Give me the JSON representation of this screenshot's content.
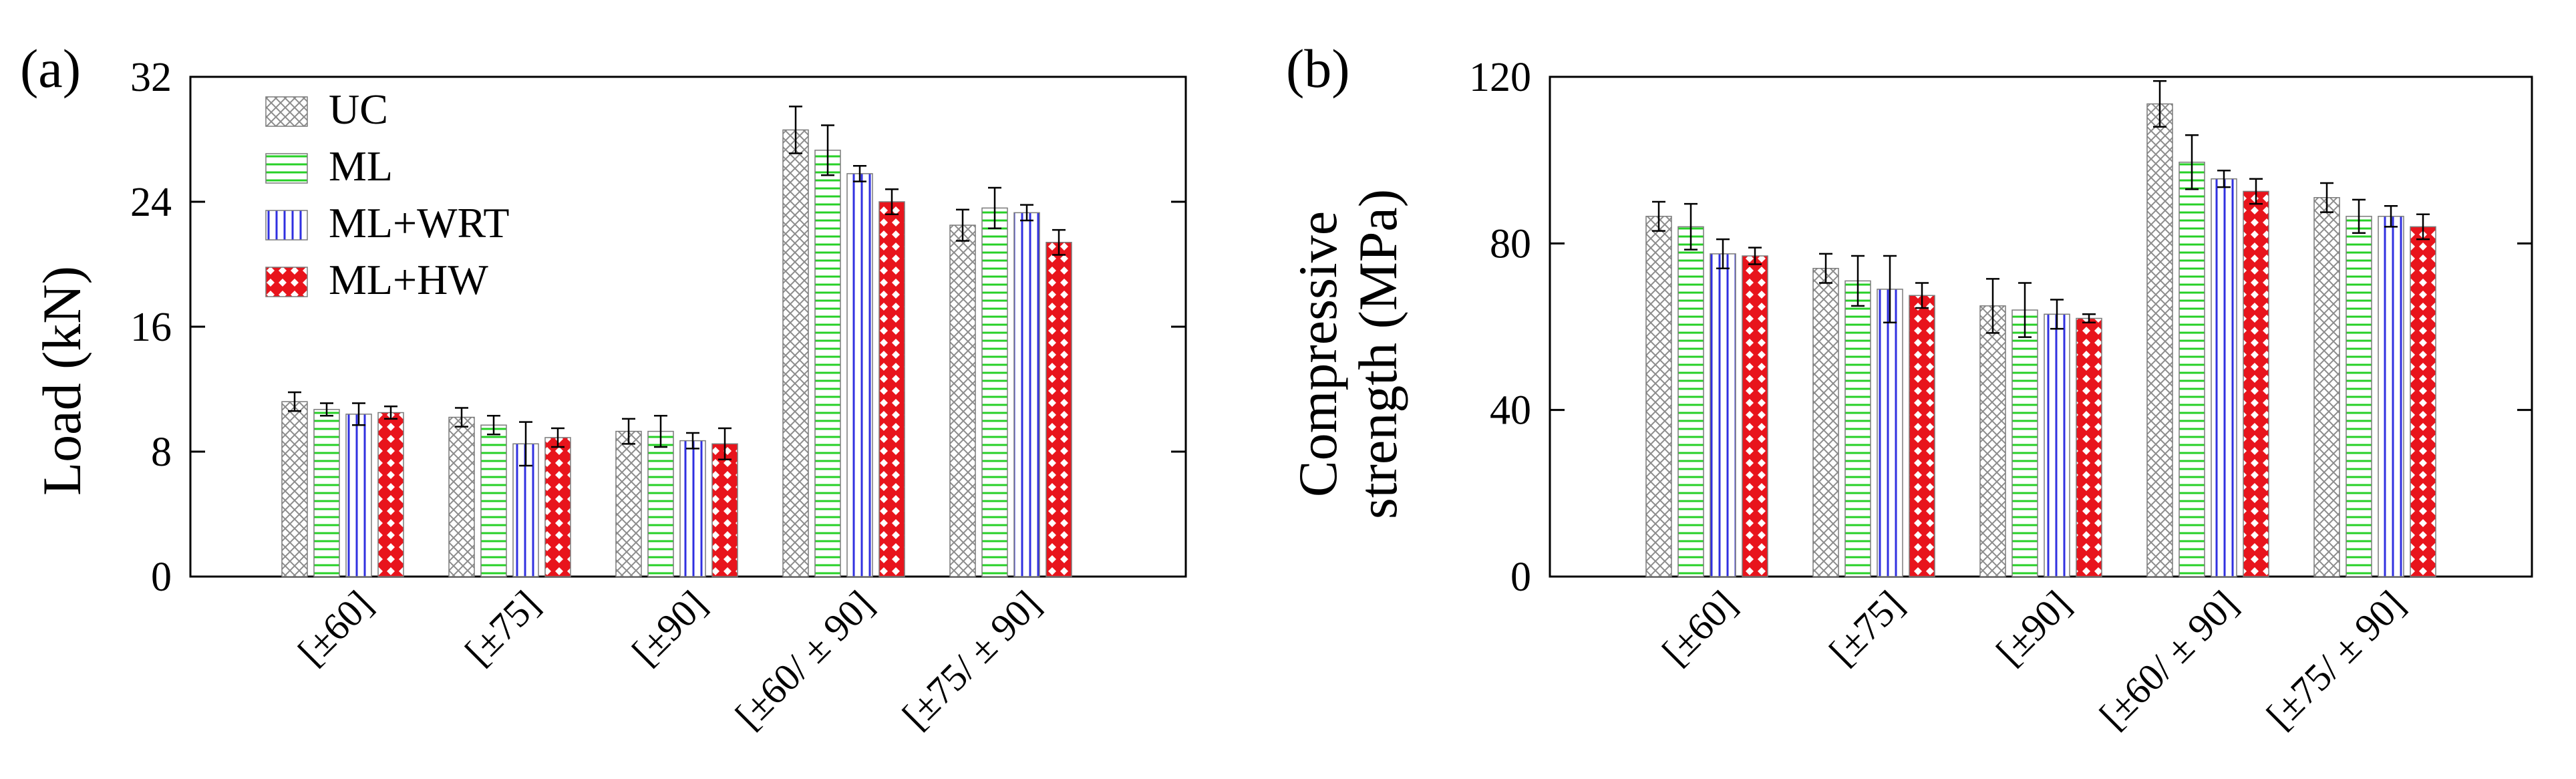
{
  "figure": {
    "panels": [
      {
        "panel_label": "(a)",
        "ylabel_lines": [
          "Load (kN)"
        ]
      },
      {
        "panel_label": "(b)",
        "ylabel_lines": [
          "Compressive",
          "strength (MPa)"
        ]
      }
    ]
  },
  "legend": {
    "entries": [
      {
        "label": "UC",
        "pattern": "crosshatch",
        "color": "#8c8c8c"
      },
      {
        "label": "ML",
        "pattern": "horizontal",
        "color": "#27d027"
      },
      {
        "label": "ML+WRT",
        "pattern": "vertical",
        "color": "#3030e0"
      },
      {
        "label": "ML+HW",
        "pattern": "checker",
        "color": "#e8141c"
      }
    ]
  },
  "chart_data": [
    {
      "type": "bar",
      "title": "(a)",
      "xlabel": "",
      "ylabel": "Load (kN)",
      "ylim": [
        0,
        32
      ],
      "yticks": [
        0,
        8,
        16,
        24,
        32
      ],
      "categories": [
        "[±60]",
        "[±75]",
        "[±90]",
        "[±60/ ± 90]",
        "[±75/ ± 90]"
      ],
      "series": [
        {
          "name": "UC",
          "values": [
            11.2,
            10.2,
            9.3,
            28.6,
            22.5
          ],
          "errors": [
            0.6,
            0.6,
            0.8,
            1.5,
            1.0
          ]
        },
        {
          "name": "ML",
          "values": [
            10.7,
            9.7,
            9.3,
            27.3,
            23.6
          ],
          "errors": [
            0.4,
            0.6,
            1.0,
            1.6,
            1.3
          ]
        },
        {
          "name": "ML+WRT",
          "values": [
            10.4,
            8.5,
            8.7,
            25.8,
            23.3
          ],
          "errors": [
            0.7,
            1.4,
            0.5,
            0.5,
            0.5
          ]
        },
        {
          "name": "ML+HW",
          "values": [
            10.5,
            8.9,
            8.5,
            24.0,
            21.4
          ],
          "errors": [
            0.4,
            0.6,
            1.0,
            0.8,
            0.8
          ]
        }
      ]
    },
    {
      "type": "bar",
      "title": "(b)",
      "xlabel": "",
      "ylabel": "Compressive strength (MPa)",
      "ylim": [
        0,
        120
      ],
      "yticks": [
        0,
        40,
        80,
        120
      ],
      "categories": [
        "[±60]",
        "[±75]",
        "[±90]",
        "[±60/ ± 90]",
        "[±75/ ± 90]"
      ],
      "series": [
        {
          "name": "UC",
          "values": [
            86.5,
            74.0,
            65.0,
            113.5,
            91.0
          ],
          "errors": [
            3.5,
            3.5,
            6.5,
            5.5,
            3.5
          ]
        },
        {
          "name": "ML",
          "values": [
            84.0,
            71.0,
            64.0,
            99.5,
            86.5
          ],
          "errors": [
            5.5,
            6.0,
            6.5,
            6.5,
            4.0
          ]
        },
        {
          "name": "ML+WRT",
          "values": [
            77.5,
            69.0,
            63.0,
            95.5,
            86.5
          ],
          "errors": [
            3.5,
            8.0,
            3.5,
            2.0,
            2.5
          ]
        },
        {
          "name": "ML+HW",
          "values": [
            77.0,
            67.5,
            62.0,
            92.5,
            84.0
          ],
          "errors": [
            2.0,
            3.0,
            1.0,
            3.0,
            3.0
          ]
        }
      ]
    }
  ]
}
